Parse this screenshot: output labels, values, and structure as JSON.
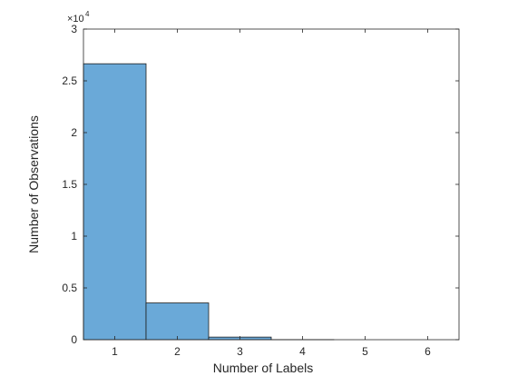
{
  "chart_data": {
    "type": "bar",
    "subtype": "histogram",
    "categories": [
      "1",
      "2",
      "3",
      "4",
      "5",
      "6"
    ],
    "values": [
      26650,
      3550,
      250,
      10,
      0,
      0
    ],
    "bin_edges": [
      0.5,
      1.5,
      2.5,
      3.5,
      4.5,
      5.5,
      6.5
    ],
    "title": "",
    "xlabel": "Number of Labels",
    "ylabel": "Number of Observations",
    "xlim": [
      0.5,
      6.5
    ],
    "ylim": [
      0,
      30000
    ],
    "x_ticks": [
      "1",
      "2",
      "3",
      "4",
      "5",
      "6"
    ],
    "x_tick_values": [
      1,
      2,
      3,
      4,
      5,
      6
    ],
    "y_ticks": [
      "0",
      "0.5",
      "1",
      "1.5",
      "2",
      "2.5",
      "3"
    ],
    "y_tick_values": [
      0,
      5000,
      10000,
      15000,
      20000,
      25000,
      30000
    ],
    "y_exponent_label": "×10",
    "y_exponent_power": "4",
    "grid": false,
    "legend": "none",
    "colors": {
      "bar_fill": "#6aa9d8",
      "bar_edge": "#1f1f1f",
      "axes": "#262626",
      "background": "#ffffff"
    }
  }
}
